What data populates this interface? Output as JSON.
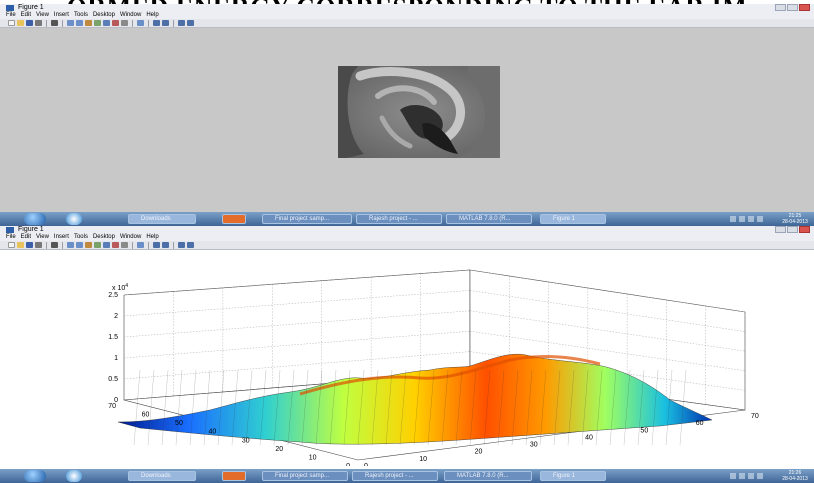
{
  "banner": {
    "text": "ORMED ENERGY CORRESPONDING TO THE EAR IM"
  },
  "figure1": {
    "window_title": "Figure 1",
    "menu": [
      "File",
      "Edit",
      "View",
      "Insert",
      "Tools",
      "Desktop",
      "Window",
      "Help"
    ]
  },
  "figure2": {
    "window_title": "Figure 1",
    "menu": [
      "File",
      "Edit",
      "View",
      "Insert",
      "Tools",
      "Desktop",
      "Window",
      "Help"
    ]
  },
  "taskbar1": {
    "items": [
      "Downloads",
      "",
      "Final project samp...",
      "Rajesh project - ...",
      "MATLAB 7.8.0 (R...",
      "Figure 1"
    ],
    "clock_time": "21:25",
    "clock_date": "28-04-2013"
  },
  "taskbar2": {
    "items": [
      "Downloads",
      "",
      "Final project samp...",
      "Rajesh project - ...",
      "MATLAB 7.8.0 (R...",
      "Figure 1"
    ],
    "clock_time": "21:26",
    "clock_date": "28-04-2013"
  },
  "chart_data": {
    "type": "surface",
    "title": "",
    "z_exponent_label": "x 10",
    "z_exponent_power": "4",
    "z_ticks": [
      "0",
      "0.5",
      "1",
      "1.5",
      "2",
      "2.5"
    ],
    "z_range": [
      0,
      25000
    ],
    "x_ticks_left": [
      "70",
      "60",
      "50",
      "40",
      "30",
      "20",
      "10",
      "0"
    ],
    "x_ticks_right": [
      "0",
      "10",
      "20",
      "30",
      "40",
      "50",
      "60",
      "70"
    ],
    "x_range": [
      0,
      70
    ],
    "y_range": [
      0,
      70
    ],
    "colormap": "jet",
    "grid": true
  }
}
